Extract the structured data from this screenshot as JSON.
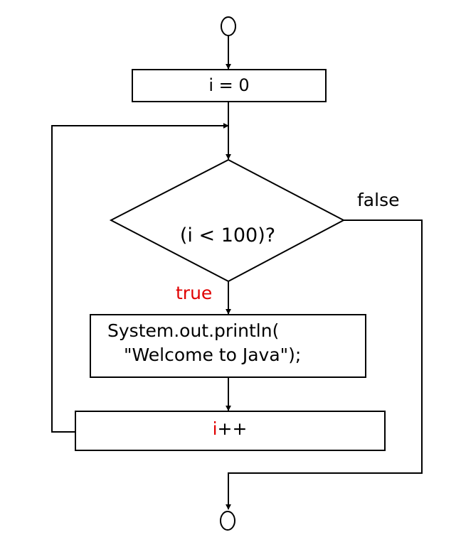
{
  "nodes": {
    "init": {
      "text": "i = 0"
    },
    "condition": {
      "text": "(i < 100)?"
    },
    "body": {
      "line1": "System.out.println(",
      "line2": "\"Welcome to Java\");"
    },
    "increment": {
      "var": "i",
      "op": "++"
    }
  },
  "edges": {
    "true_label": "true",
    "false_label": "false"
  },
  "colors": {
    "stroke": "#000000",
    "highlight": "#e00000",
    "background": "#ffffff"
  }
}
